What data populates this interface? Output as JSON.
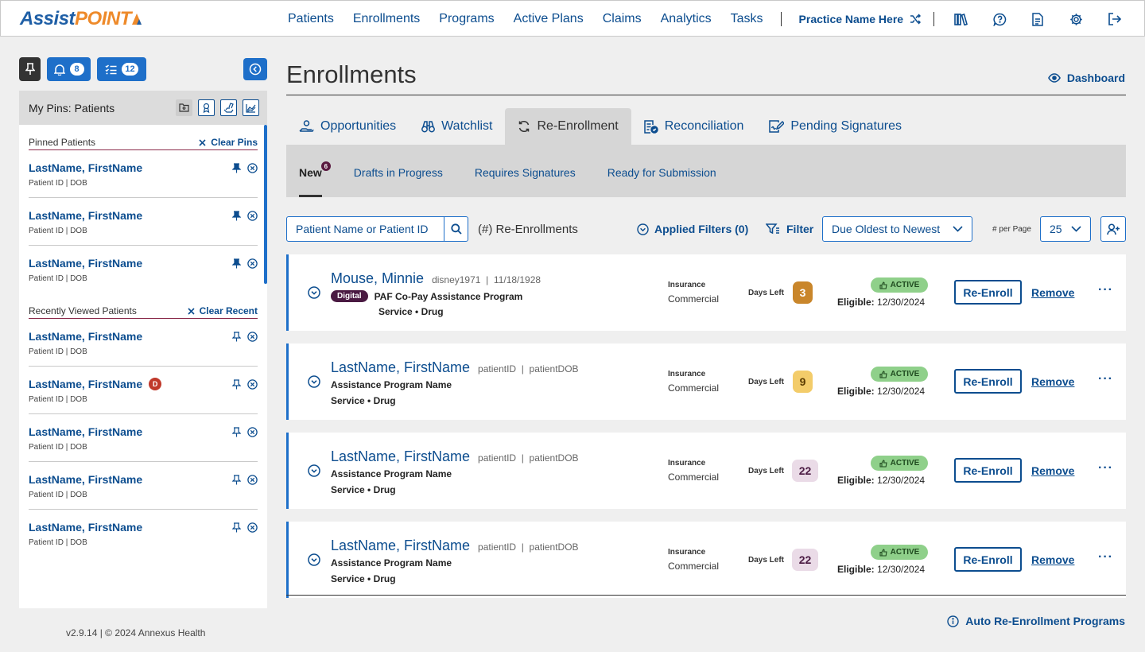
{
  "app": {
    "logo_part1": "Assist",
    "logo_part2": "POINT"
  },
  "nav": {
    "items": [
      "Patients",
      "Enrollments",
      "Programs",
      "Active Plans",
      "Claims",
      "Analytics",
      "Tasks"
    ],
    "practice": "Practice Name Here"
  },
  "sidebar": {
    "notifications_count": "8",
    "tasks_count": "12",
    "header": "My Pins: Patients",
    "pinned_title": "Pinned Patients",
    "clear_pins": "Clear Pins",
    "recent_title": "Recently Viewed Patients",
    "clear_recent": "Clear Recent",
    "pinned": [
      {
        "name": "LastName, FirstName",
        "sub": "Patient ID  |  DOB"
      },
      {
        "name": "LastName, FirstName",
        "sub": "Patient ID  |  DOB"
      },
      {
        "name": "LastName, FirstName",
        "sub": "Patient ID  |  DOB"
      }
    ],
    "recent": [
      {
        "name": "LastName, FirstName",
        "sub": "Patient ID  |  DOB",
        "badge": ""
      },
      {
        "name": "LastName, FirstName",
        "sub": "Patient ID  |  DOB",
        "badge": "D"
      },
      {
        "name": "LastName, FirstName",
        "sub": "Patient ID  |  DOB",
        "badge": ""
      },
      {
        "name": "LastName, FirstName",
        "sub": "Patient ID  |  DOB",
        "badge": ""
      },
      {
        "name": "LastName, FirstName",
        "sub": "Patient ID  |  DOB",
        "badge": ""
      }
    ],
    "footer": "v2.9.14  |  © 2024 Annexus Health"
  },
  "page": {
    "title": "Enrollments",
    "dashboard_link": "Dashboard",
    "tabs": [
      "Opportunities",
      "Watchlist",
      "Re-Enrollment",
      "Reconciliation",
      "Pending Signatures"
    ],
    "subtabs": [
      "New",
      "Drafts in Progress",
      "Requires Signatures",
      "Ready for Submission"
    ],
    "new_count": "6",
    "search_placeholder": "Patient Name or Patient ID",
    "count_label": "(#) Re-Enrollments",
    "applied_filters": "Applied Filters (0)",
    "filter": "Filter",
    "sort": "Due Oldest to Newest",
    "per_page_label": "# per Page",
    "per_page": "25",
    "auto_link": "Auto Re-Enrollment Programs"
  },
  "labels": {
    "insurance": "Insurance",
    "days_left": "Days Left",
    "eligible": "Eligible:",
    "reenroll": "Re-Enroll",
    "remove": "Remove",
    "more": "···",
    "service": "Service  •  Drug"
  },
  "cards": [
    {
      "name": "Mouse, Minnie",
      "pid": "disney1971",
      "dob": "11/18/1928",
      "digital": "Digital",
      "program": "PAF Co-Pay Assistance Program",
      "insurance": "Commercial",
      "days": "3",
      "days_color": "#c9862b",
      "days_text": "#ffffff",
      "status": "ACTIVE",
      "eligible": "12/30/2024"
    },
    {
      "name": "LastName, FirstName",
      "pid": "patientID",
      "dob": "patientDOB",
      "digital": "",
      "program": "Assistance Program Name",
      "insurance": "Commercial",
      "days": "9",
      "days_color": "#f3cc6a",
      "days_text": "#5a3b00",
      "status": "ACTIVE",
      "eligible": "12/30/2024"
    },
    {
      "name": "LastName, FirstName",
      "pid": "patientID",
      "dob": "patientDOB",
      "digital": "",
      "program": "Assistance Program Name",
      "insurance": "Commercial",
      "days": "22",
      "days_color": "#eadbe7",
      "days_text": "#4a1a42",
      "status": "ACTIVE",
      "eligible": "12/30/2024"
    },
    {
      "name": "LastName, FirstName",
      "pid": "patientID",
      "dob": "patientDOB",
      "digital": "",
      "program": "Assistance Program Name",
      "insurance": "Commercial",
      "days": "22",
      "days_color": "#eadbe7",
      "days_text": "#4a1a42",
      "status": "ACTIVE",
      "eligible": "12/30/2024"
    }
  ]
}
